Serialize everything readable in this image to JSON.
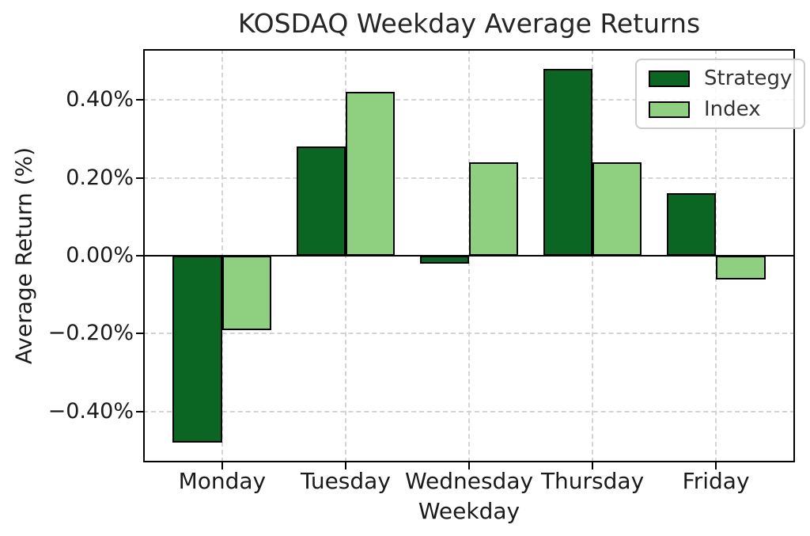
{
  "chart_data": {
    "type": "bar",
    "title": "KOSDAQ Weekday Average Returns",
    "xlabel": "Weekday",
    "ylabel": "Average Return (%)",
    "categories": [
      "Monday",
      "Tuesday",
      "Wednesday",
      "Thursday",
      "Friday"
    ],
    "series": [
      {
        "name": "Strategy",
        "color": "#0b6623",
        "values": [
          -0.48,
          0.28,
          -0.02,
          0.48,
          0.16
        ]
      },
      {
        "name": "Index",
        "color": "#8ed080",
        "values": [
          -0.19,
          0.42,
          0.24,
          0.24,
          -0.06
        ]
      }
    ],
    "value_unit": "%",
    "ylim": [
      -0.53,
      0.53
    ],
    "yticks": [
      {
        "value": 0.4,
        "label": "0.40%"
      },
      {
        "value": 0.2,
        "label": "0.20%"
      },
      {
        "value": 0.0,
        "label": "0.00%"
      },
      {
        "value": -0.2,
        "label": "−0.20%"
      },
      {
        "value": -0.4,
        "label": "−0.40%"
      }
    ],
    "grid": true,
    "zero_line": true,
    "legend_position": "upper right",
    "colors": {
      "bar_edge": "#000000",
      "grid": "#d4d4d4",
      "axis": "#000000",
      "background": "#ffffff",
      "legend_border": "#cccccc"
    }
  }
}
